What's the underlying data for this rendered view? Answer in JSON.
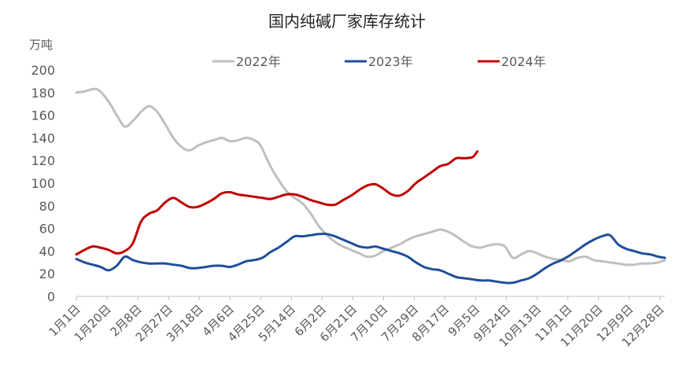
{
  "chart_data": {
    "type": "line",
    "title": "国内纯碱厂家库存统计",
    "unit_label": "万吨",
    "ylim": [
      0,
      200
    ],
    "yticks": [
      0,
      20,
      40,
      60,
      80,
      100,
      120,
      140,
      160,
      180,
      200
    ],
    "xlim": [
      0,
      364
    ],
    "x_unit": "day of year",
    "xticks": [
      {
        "day": 0,
        "label": "1月1日"
      },
      {
        "day": 19,
        "label": "1月20日"
      },
      {
        "day": 38,
        "label": "2月8日"
      },
      {
        "day": 57,
        "label": "2月27日"
      },
      {
        "day": 76,
        "label": "3月18日"
      },
      {
        "day": 95,
        "label": "4月6日"
      },
      {
        "day": 114,
        "label": "4月25日"
      },
      {
        "day": 133,
        "label": "5月14日"
      },
      {
        "day": 152,
        "label": "6月2日"
      },
      {
        "day": 171,
        "label": "6月21日"
      },
      {
        "day": 190,
        "label": "7月10日"
      },
      {
        "day": 209,
        "label": "7月29日"
      },
      {
        "day": 228,
        "label": "8月17日"
      },
      {
        "day": 247,
        "label": "9月5日"
      },
      {
        "day": 266,
        "label": "9月24日"
      },
      {
        "day": 285,
        "label": "10月13日"
      },
      {
        "day": 304,
        "label": "11月1日"
      },
      {
        "day": 323,
        "label": "11月20日"
      },
      {
        "day": 342,
        "label": "12月9日"
      },
      {
        "day": 361,
        "label": "12月28日"
      }
    ],
    "series": [
      {
        "name": "2022年",
        "color": "#bfbfbf",
        "x": [
          0,
          5,
          10,
          14,
          20,
          25,
          30,
          35,
          40,
          45,
          50,
          55,
          60,
          65,
          70,
          75,
          80,
          85,
          90,
          95,
          100,
          105,
          110,
          114,
          120,
          125,
          130,
          135,
          140,
          145,
          150,
          155,
          160,
          165,
          170,
          175,
          180,
          185,
          190,
          195,
          200,
          205,
          210,
          215,
          220,
          225,
          230,
          235,
          240,
          245,
          250,
          255,
          260,
          265,
          270,
          275,
          280,
          285,
          290,
          295,
          300,
          305,
          310,
          315,
          320,
          325,
          330,
          335,
          340,
          345,
          350,
          355,
          360,
          364
        ],
        "values": [
          180,
          181,
          183,
          182,
          172,
          160,
          150,
          155,
          163,
          168,
          163,
          152,
          140,
          132,
          129,
          133,
          136,
          138,
          140,
          137,
          138,
          140,
          138,
          133,
          115,
          103,
          93,
          87,
          82,
          73,
          62,
          54,
          48,
          44,
          41,
          38,
          35,
          36,
          40,
          43,
          46,
          50,
          53,
          55,
          57,
          59,
          57,
          53,
          48,
          44,
          43,
          45,
          46,
          44,
          34,
          37,
          40,
          38,
          35,
          33,
          32,
          31,
          34,
          35,
          32,
          31,
          30,
          29,
          28,
          28,
          29,
          29,
          30,
          32
        ]
      },
      {
        "name": "2023年",
        "color": "#1f4e9c",
        "x": [
          0,
          5,
          10,
          15,
          20,
          25,
          30,
          35,
          40,
          45,
          50,
          55,
          60,
          65,
          70,
          75,
          80,
          85,
          90,
          95,
          100,
          105,
          110,
          115,
          120,
          125,
          130,
          135,
          140,
          145,
          150,
          155,
          160,
          165,
          170,
          175,
          180,
          185,
          190,
          195,
          200,
          205,
          210,
          215,
          220,
          225,
          230,
          235,
          240,
          245,
          250,
          255,
          260,
          265,
          270,
          275,
          280,
          285,
          290,
          295,
          300,
          305,
          310,
          315,
          320,
          325,
          330,
          335,
          340,
          345,
          350,
          355,
          360,
          364
        ],
        "values": [
          33,
          30,
          28,
          26,
          23,
          27,
          35,
          32,
          30,
          29,
          29,
          29,
          28,
          27,
          25,
          25,
          26,
          27,
          27,
          26,
          28,
          31,
          32,
          34,
          39,
          43,
          48,
          53,
          53,
          54,
          55,
          55,
          53,
          50,
          47,
          44,
          43,
          44,
          42,
          40,
          38,
          35,
          30,
          26,
          24,
          23,
          20,
          17,
          16,
          15,
          14,
          14,
          13,
          12,
          12,
          14,
          16,
          20,
          25,
          29,
          32,
          36,
          41,
          46,
          50,
          53,
          54,
          46,
          42,
          40,
          38,
          37,
          35,
          34
        ]
      },
      {
        "name": "2024年",
        "color": "#c00000",
        "x": [
          0,
          5,
          10,
          15,
          20,
          25,
          30,
          35,
          40,
          45,
          50,
          55,
          60,
          65,
          70,
          75,
          80,
          85,
          90,
          95,
          100,
          105,
          110,
          115,
          120,
          125,
          130,
          135,
          140,
          145,
          150,
          155,
          160,
          165,
          170,
          175,
          180,
          185,
          190,
          195,
          200,
          205,
          210,
          215,
          220,
          225,
          230,
          235,
          240,
          245,
          248
        ],
        "values": [
          37,
          41,
          44,
          43,
          41,
          38,
          40,
          47,
          66,
          73,
          76,
          83,
          87,
          83,
          79,
          79,
          82,
          86,
          91,
          92,
          90,
          89,
          88,
          87,
          86,
          88,
          90,
          90,
          88,
          85,
          83,
          81,
          81,
          85,
          89,
          94,
          98,
          99,
          95,
          90,
          89,
          93,
          100,
          105,
          110,
          115,
          117,
          122,
          122,
          123,
          128
        ]
      }
    ],
    "legend": "top-center"
  }
}
